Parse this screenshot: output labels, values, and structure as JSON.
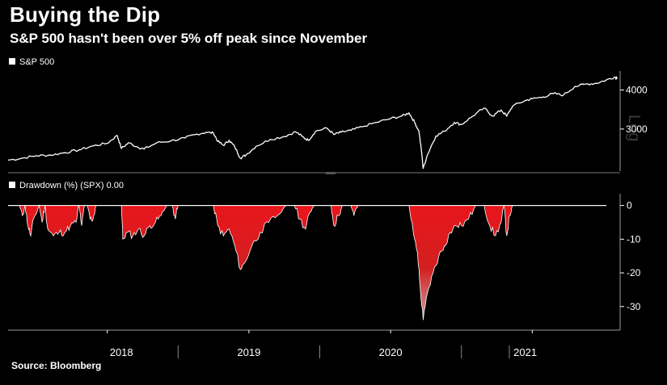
{
  "title": "Buying the Dip",
  "subtitle": "S&P 500 hasn't been over 5% off peak since November",
  "source": "Source: Bloomberg",
  "colors": {
    "background": "#000000",
    "line": "#ffffff",
    "drawdown_fill": "#e8161b",
    "drawdown_fill_dark": "#cfa0a0"
  },
  "chart_data": [
    {
      "type": "line",
      "panel": "top",
      "legend": "S&P 500",
      "scale_label": "Log",
      "log_scale": true,
      "yticks": [
        3000,
        4000
      ],
      "ylim": [
        2200,
        4600
      ],
      "xlim": [
        2017.3,
        2021.62
      ],
      "xticks": [
        "2018",
        "2019",
        "2020",
        "2021"
      ],
      "series": [
        {
          "name": "S&P 500",
          "points": [
            [
              2017.3,
              2385
            ],
            [
              2017.4,
              2420
            ],
            [
              2017.5,
              2465
            ],
            [
              2017.6,
              2475
            ],
            [
              2017.7,
              2520
            ],
            [
              2017.8,
              2570
            ],
            [
              2017.9,
              2650
            ],
            [
              2018.0,
              2700
            ],
            [
              2018.07,
              2860
            ],
            [
              2018.1,
              2600
            ],
            [
              2018.15,
              2710
            ],
            [
              2018.22,
              2620
            ],
            [
              2018.26,
              2590
            ],
            [
              2018.35,
              2710
            ],
            [
              2018.45,
              2750
            ],
            [
              2018.55,
              2810
            ],
            [
              2018.62,
              2880
            ],
            [
              2018.7,
              2930
            ],
            [
              2018.75,
              2910
            ],
            [
              2018.78,
              2740
            ],
            [
              2018.82,
              2660
            ],
            [
              2018.86,
              2760
            ],
            [
              2018.9,
              2630
            ],
            [
              2018.94,
              2420
            ],
            [
              2018.98,
              2480
            ],
            [
              2019.05,
              2640
            ],
            [
              2019.15,
              2780
            ],
            [
              2019.25,
              2840
            ],
            [
              2019.33,
              2940
            ],
            [
              2019.38,
              2830
            ],
            [
              2019.42,
              2760
            ],
            [
              2019.47,
              2950
            ],
            [
              2019.55,
              3020
            ],
            [
              2019.6,
              2880
            ],
            [
              2019.65,
              2930
            ],
            [
              2019.72,
              2970
            ],
            [
              2019.8,
              3050
            ],
            [
              2019.9,
              3150
            ],
            [
              2020.0,
              3240
            ],
            [
              2020.08,
              3300
            ],
            [
              2020.13,
              3380
            ],
            [
              2020.17,
              3150
            ],
            [
              2020.2,
              2950
            ],
            [
              2020.22,
              2500
            ],
            [
              2020.23,
              2240
            ],
            [
              2020.26,
              2480
            ],
            [
              2020.32,
              2850
            ],
            [
              2020.38,
              2950
            ],
            [
              2020.45,
              3150
            ],
            [
              2020.5,
              3100
            ],
            [
              2020.58,
              3300
            ],
            [
              2020.66,
              3500
            ],
            [
              2020.72,
              3300
            ],
            [
              2020.78,
              3450
            ],
            [
              2020.82,
              3300
            ],
            [
              2020.86,
              3550
            ],
            [
              2020.95,
              3700
            ],
            [
              2021.0,
              3750
            ],
            [
              2021.08,
              3800
            ],
            [
              2021.15,
              3900
            ],
            [
              2021.22,
              3850
            ],
            [
              2021.3,
              4100
            ],
            [
              2021.38,
              4180
            ],
            [
              2021.45,
              4200
            ],
            [
              2021.52,
              4300
            ],
            [
              2021.58,
              4400
            ],
            [
              2021.6,
              4380
            ]
          ]
        }
      ]
    },
    {
      "type": "area",
      "panel": "bottom",
      "legend": "Drawdown (%) (SPX) 0.00",
      "yticks": [
        0,
        -10,
        -20,
        -30
      ],
      "ylim": [
        -37,
        3.5
      ],
      "xlim": [
        2017.3,
        2021.62
      ],
      "series": [
        {
          "name": "Drawdown (%) (SPX)",
          "points": [
            [
              2017.3,
              0
            ],
            [
              2017.38,
              0
            ],
            [
              2017.4,
              -3
            ],
            [
              2017.42,
              0
            ],
            [
              2017.44,
              -6
            ],
            [
              2017.46,
              -9
            ],
            [
              2017.48,
              -4
            ],
            [
              2017.52,
              0
            ],
            [
              2017.54,
              -5
            ],
            [
              2017.56,
              0
            ],
            [
              2017.58,
              -7
            ],
            [
              2017.62,
              -9
            ],
            [
              2017.66,
              -8
            ],
            [
              2017.7,
              -8
            ],
            [
              2017.74,
              -6
            ],
            [
              2017.78,
              -5
            ],
            [
              2017.8,
              0
            ],
            [
              2017.82,
              -6
            ],
            [
              2017.84,
              0
            ],
            [
              2017.86,
              0
            ],
            [
              2017.88,
              -4
            ],
            [
              2017.9,
              -4
            ],
            [
              2017.92,
              0
            ],
            [
              2018.1,
              0
            ],
            [
              2018.11,
              -10
            ],
            [
              2018.14,
              -8
            ],
            [
              2018.18,
              -9
            ],
            [
              2018.22,
              -7
            ],
            [
              2018.26,
              -9
            ],
            [
              2018.3,
              -6
            ],
            [
              2018.34,
              -5
            ],
            [
              2018.38,
              -3
            ],
            [
              2018.42,
              0
            ],
            [
              2018.46,
              0
            ],
            [
              2018.48,
              -4
            ],
            [
              2018.5,
              0
            ],
            [
              2018.62,
              0
            ],
            [
              2018.75,
              0
            ],
            [
              2018.78,
              -6
            ],
            [
              2018.82,
              -9
            ],
            [
              2018.86,
              -7
            ],
            [
              2018.9,
              -12
            ],
            [
              2018.94,
              -19
            ],
            [
              2018.97,
              -17
            ],
            [
              2019.02,
              -12
            ],
            [
              2019.08,
              -8
            ],
            [
              2019.14,
              -5
            ],
            [
              2019.2,
              -3
            ],
            [
              2019.26,
              0
            ],
            [
              2019.32,
              0
            ],
            [
              2019.36,
              -4
            ],
            [
              2019.4,
              -7
            ],
            [
              2019.43,
              -2
            ],
            [
              2019.46,
              0
            ],
            [
              2019.58,
              0
            ],
            [
              2019.6,
              -6
            ],
            [
              2019.63,
              -3
            ],
            [
              2019.66,
              0
            ],
            [
              2019.72,
              0
            ],
            [
              2019.74,
              -3
            ],
            [
              2019.77,
              0
            ],
            [
              2020.13,
              0
            ],
            [
              2020.16,
              -8
            ],
            [
              2020.19,
              -14
            ],
            [
              2020.21,
              -25
            ],
            [
              2020.23,
              -34
            ],
            [
              2020.26,
              -26
            ],
            [
              2020.3,
              -20
            ],
            [
              2020.34,
              -15
            ],
            [
              2020.38,
              -12
            ],
            [
              2020.42,
              -8
            ],
            [
              2020.46,
              -6
            ],
            [
              2020.5,
              -6
            ],
            [
              2020.55,
              -4
            ],
            [
              2020.6,
              0
            ],
            [
              2020.66,
              0
            ],
            [
              2020.7,
              -6
            ],
            [
              2020.74,
              -9
            ],
            [
              2020.78,
              -5
            ],
            [
              2020.8,
              0
            ],
            [
              2020.82,
              -9
            ],
            [
              2020.84,
              -3
            ],
            [
              2020.86,
              0
            ],
            [
              2021.62,
              0
            ]
          ]
        }
      ]
    }
  ]
}
